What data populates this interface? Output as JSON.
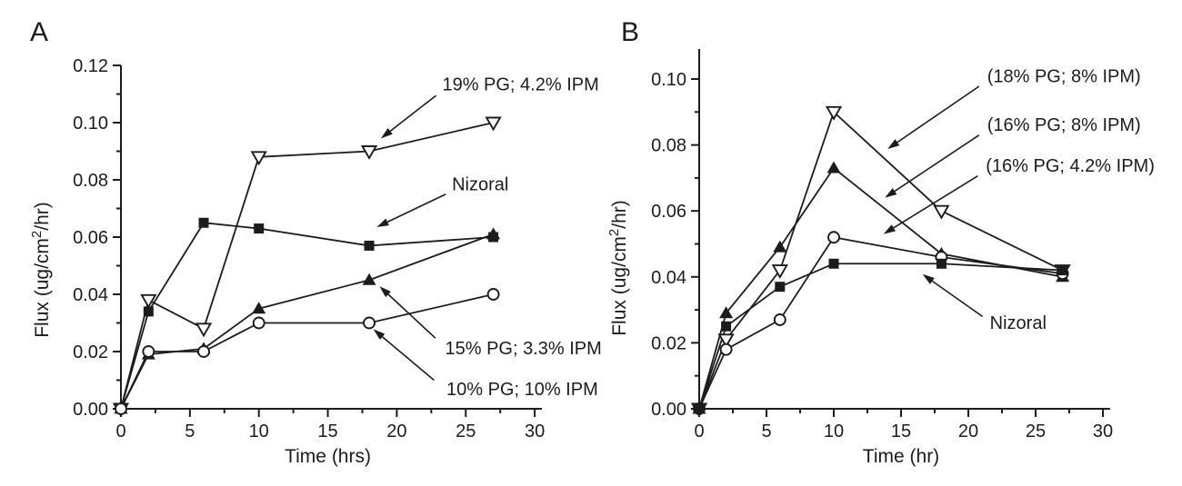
{
  "figure": {
    "background": "#ffffff",
    "ink_color": "#1c1c1c"
  },
  "chart_data": [
    {
      "type": "line",
      "panel_label": "A",
      "title": "",
      "xlabel": "Time (hrs)",
      "ylabel_prefix": "Flux (ug/cm",
      "ylabel_sup": "2",
      "ylabel_suffix": "/hr)",
      "xlim": [
        0,
        30
      ],
      "ylim": [
        0,
        0.12
      ],
      "grid": false,
      "x_major_ticks": [
        0,
        5,
        10,
        15,
        20,
        25,
        30
      ],
      "x_tick_labels": [
        "0",
        "5",
        "10",
        "15",
        "20",
        "25",
        "30"
      ],
      "x_minor_ticks": [
        2.5,
        7.5,
        12.5,
        17.5,
        22.5,
        27.5
      ],
      "y_major_ticks": [
        0.0,
        0.02,
        0.04,
        0.06,
        0.08,
        0.1,
        0.12
      ],
      "y_tick_labels": [
        "0.00",
        "0.02",
        "0.04",
        "0.06",
        "0.08",
        "0.10",
        "0.12"
      ],
      "y_minor_ticks": [
        0.01,
        0.03,
        0.05,
        0.07,
        0.09,
        0.11
      ],
      "x": [
        0,
        2,
        6,
        10,
        18,
        27
      ],
      "series": [
        {
          "name": "19% PG; 4.2% IPM",
          "marker": "triangle-down-open",
          "values": [
            0.0,
            0.038,
            0.028,
            0.088,
            0.09,
            0.1
          ]
        },
        {
          "name": "Nizoral",
          "marker": "square-filled",
          "values": [
            0.0,
            0.034,
            0.065,
            0.063,
            0.057,
            0.06
          ]
        },
        {
          "name": "15% PG; 3.3% IPM",
          "marker": "triangle-up-filled",
          "values": [
            0.0,
            0.019,
            0.021,
            0.035,
            0.045,
            0.061
          ]
        },
        {
          "name": "10% PG; 10% IPM",
          "marker": "circle-open",
          "values": [
            0.0,
            0.02,
            0.02,
            0.03,
            0.03,
            0.04
          ]
        }
      ],
      "annotations": [
        {
          "text": "19% PG; 4.2% IPM",
          "text_at": [
            23.3,
            0.1135
          ],
          "arrow_from": [
            22.85,
            0.1095
          ],
          "arrow_to": [
            18.85,
            0.0945
          ]
        },
        {
          "text": "Nizoral",
          "text_at": [
            24.0,
            0.0785
          ],
          "arrow_from": [
            23.55,
            0.075
          ],
          "arrow_to": [
            18.55,
            0.0635
          ]
        },
        {
          "text": "15% PG; 3.3% IPM",
          "text_at": [
            23.5,
            0.0213
          ],
          "arrow_from": [
            22.8,
            0.0247
          ],
          "arrow_to": [
            18.75,
            0.0428
          ]
        },
        {
          "text": "10% PG; 10% IPM",
          "text_at": [
            23.6,
            0.007
          ],
          "arrow_from": [
            22.7,
            0.01
          ],
          "arrow_to": [
            18.3,
            0.0278
          ]
        }
      ]
    },
    {
      "type": "line",
      "panel_label": "B",
      "title": "",
      "xlabel": "Time (hr)",
      "ylabel_prefix": "Flux (ug/cm",
      "ylabel_sup": "2",
      "ylabel_suffix": "/hr)",
      "xlim": [
        0,
        30
      ],
      "ylim": [
        0,
        0.109
      ],
      "grid": false,
      "x_major_ticks": [
        0,
        5,
        10,
        15,
        20,
        25,
        30
      ],
      "x_tick_labels": [
        "0",
        "5",
        "10",
        "15",
        "20",
        "25",
        "30"
      ],
      "x_minor_ticks": [
        2.5,
        7.5,
        12.5,
        17.5,
        22.5,
        27.5
      ],
      "y_major_ticks": [
        0.0,
        0.02,
        0.04,
        0.06,
        0.08,
        0.1
      ],
      "y_tick_labels": [
        "0.00",
        "0.02",
        "0.04",
        "0.06",
        "0.08",
        "0.10"
      ],
      "y_minor_ticks": [
        0.01,
        0.03,
        0.05,
        0.07,
        0.09
      ],
      "x": [
        0,
        2,
        6,
        10,
        18,
        27
      ],
      "series": [
        {
          "name": "(18% PG; 8% IPM)",
          "marker": "triangle-down-open",
          "values": [
            0.0,
            0.021,
            0.042,
            0.09,
            0.06,
            0.042
          ]
        },
        {
          "name": "(16% PG; 8% IPM)",
          "marker": "triangle-up-filled",
          "values": [
            0.0,
            0.029,
            0.049,
            0.073,
            0.047,
            0.04
          ]
        },
        {
          "name": "(16% PG; 4.2% IPM)",
          "marker": "circle-open",
          "values": [
            0.0,
            0.018,
            0.027,
            0.052,
            0.046,
            0.041
          ]
        },
        {
          "name": "Nizoral",
          "marker": "square-filled",
          "values": [
            0.0,
            0.025,
            0.037,
            0.044,
            0.044,
            0.042
          ]
        }
      ],
      "annotations": [
        {
          "text": "(18% PG; 8% IPM)",
          "text_at": [
            21.4,
            0.101
          ],
          "arrow_from": [
            20.8,
            0.0978
          ],
          "arrow_to": [
            14.0,
            0.0788
          ]
        },
        {
          "text": "(16% PG; 8% IPM)",
          "text_at": [
            21.4,
            0.0862
          ],
          "arrow_from": [
            20.8,
            0.083
          ],
          "arrow_to": [
            13.8,
            0.064
          ]
        },
        {
          "text": "(16% PG; 4.2% IPM)",
          "text_at": [
            21.3,
            0.0738
          ],
          "arrow_from": [
            20.7,
            0.0706
          ],
          "arrow_to": [
            13.7,
            0.053
          ]
        },
        {
          "text": "Nizoral",
          "text_at": [
            21.6,
            0.0262
          ],
          "arrow_from": [
            21.05,
            0.028
          ],
          "arrow_to": [
            16.6,
            0.0408
          ]
        }
      ]
    }
  ]
}
